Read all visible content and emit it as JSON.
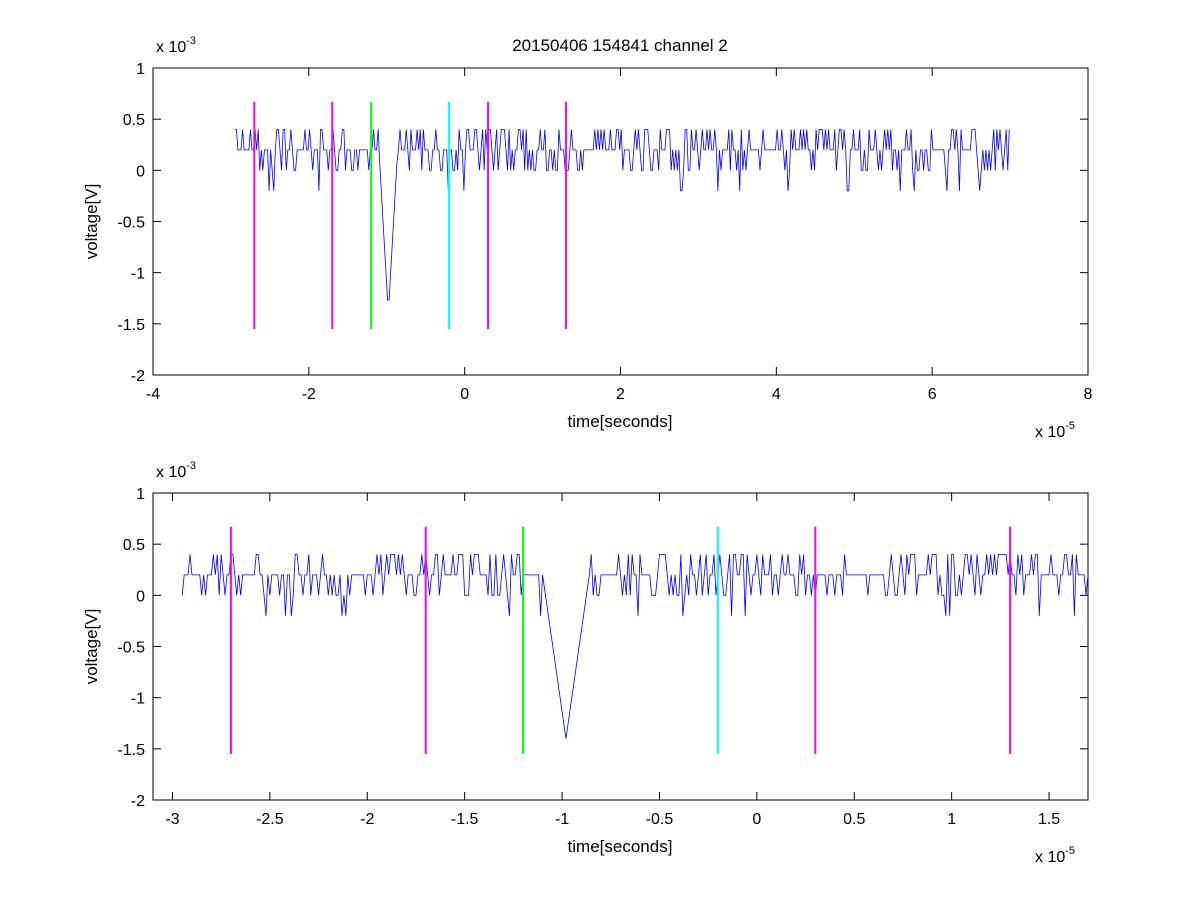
{
  "figure": {
    "title": "20150406 154841 channel 2"
  },
  "chart_data": [
    {
      "type": "line",
      "title": "20150406 154841 channel 2",
      "xlabel": "time[seconds]",
      "ylabel": "voltage[V]",
      "x_exponent_label": "x 10",
      "x_exponent": "-5",
      "y_exponent_label": "x 10",
      "y_exponent": "-3",
      "xlim": [
        -4e-05,
        8e-05
      ],
      "ylim": [
        -0.002,
        0.001
      ],
      "xticks": [
        -4e-05,
        -2e-05,
        0,
        2e-05,
        4e-05,
        6e-05,
        8e-05
      ],
      "xtick_labels": [
        "-4",
        "-2",
        "0",
        "2",
        "4",
        "6",
        "8"
      ],
      "yticks": [
        0.001,
        0.0005,
        0,
        -0.0005,
        -0.001,
        -0.0015,
        -0.002
      ],
      "ytick_labels": [
        "1",
        "0.5",
        "0",
        "-0.5",
        "-1",
        "-1.5",
        "-2"
      ],
      "signal": {
        "color": "#0000ff",
        "x_start": -2.95e-05,
        "x_end": 7e-05,
        "step": 2e-07,
        "baseline": 0.0002,
        "quantum": 0.0002,
        "spike_time": -9.8e-06,
        "spike_min": -0.0014
      },
      "markers": [
        {
          "x": -2.7e-05,
          "color": "#ff00ff"
        },
        {
          "x": -1.7e-05,
          "color": "#ff00ff"
        },
        {
          "x": -1.2e-05,
          "color": "#00ff00"
        },
        {
          "x": -2e-06,
          "color": "#00ffff"
        },
        {
          "x": 3e-06,
          "color": "#ff00ff"
        },
        {
          "x": 1.3e-05,
          "color": "#ff00ff"
        }
      ],
      "marker_range": [
        -0.00155,
        0.00067
      ]
    },
    {
      "type": "line",
      "title": "",
      "xlabel": "time[seconds]",
      "ylabel": "voltage[V]",
      "x_exponent_label": "x 10",
      "x_exponent": "-5",
      "y_exponent_label": "x 10",
      "y_exponent": "-3",
      "xlim": [
        -3.1e-05,
        1.7e-05
      ],
      "ylim": [
        -0.002,
        0.001
      ],
      "xticks": [
        -3e-05,
        -2.5e-05,
        -2e-05,
        -1.5e-05,
        -1e-05,
        -5e-06,
        0,
        5e-06,
        1e-05,
        1.5e-05
      ],
      "xtick_labels": [
        "-3",
        "-2.5",
        "-2",
        "-1.5",
        "-1",
        "-0.5",
        "0",
        "0.5",
        "1",
        "1.5"
      ],
      "yticks": [
        0.001,
        0.0005,
        0,
        -0.0005,
        -0.001,
        -0.0015,
        -0.002
      ],
      "ytick_labels": [
        "1",
        "0.5",
        "0",
        "-0.5",
        "-1",
        "-1.5",
        "-2"
      ],
      "signal": {
        "color": "#0000ff",
        "x_start": -2.95e-05,
        "x_end": 1.7e-05,
        "step": 1e-07,
        "baseline": 0.0002,
        "quantum": 0.0002,
        "spike_time": -9.8e-06,
        "spike_min": -0.0014
      },
      "markers": [
        {
          "x": -2.7e-05,
          "color": "#ff00ff"
        },
        {
          "x": -1.7e-05,
          "color": "#ff00ff"
        },
        {
          "x": -1.2e-05,
          "color": "#00ff00"
        },
        {
          "x": -2e-06,
          "color": "#00ffff"
        },
        {
          "x": 3e-06,
          "color": "#ff00ff"
        },
        {
          "x": 1.3e-05,
          "color": "#ff00ff"
        }
      ],
      "marker_range": [
        -0.00155,
        0.00067
      ]
    }
  ]
}
